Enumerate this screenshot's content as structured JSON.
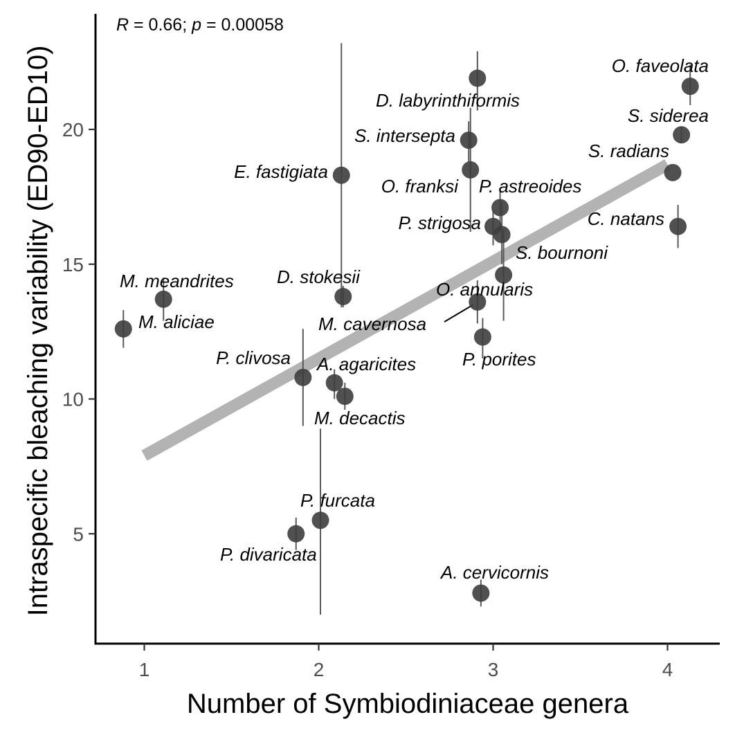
{
  "chart_data": {
    "type": "scatter",
    "xlabel": "Number of Symbiodiniaceae genera",
    "ylabel": "Intraspecific bleaching variability (ED90-ED10)",
    "xlim": [
      0.7,
      4.2
    ],
    "ylim": [
      1.2,
      24.0
    ],
    "x_ticks": [
      1,
      2,
      3,
      4
    ],
    "y_ticks": [
      5,
      10,
      15,
      20
    ],
    "grid": false,
    "annotation": {
      "r_symbol": "R",
      "r_text": " = 0.66; ",
      "p_symbol": "p",
      "p_text": " = 0.00058"
    },
    "fit_line": {
      "x": [
        1.0,
        4.0
      ],
      "y": [
        7.9,
        18.7
      ]
    },
    "points": [
      {
        "label": "O. faveolata",
        "x": 4.13,
        "y": 21.6,
        "ylo": 20.9,
        "yhi": 22.4
      },
      {
        "label": "S. siderea",
        "x": 4.08,
        "y": 19.8,
        "ylo": 19.5,
        "yhi": 20.1
      },
      {
        "label": "S. radians",
        "x": 4.03,
        "y": 18.4,
        "ylo": 18.4,
        "yhi": 18.4
      },
      {
        "label": "C. natans",
        "x": 4.06,
        "y": 16.4,
        "ylo": 15.6,
        "yhi": 17.2
      },
      {
        "label": "D. labyrinthiformis",
        "x": 2.91,
        "y": 21.9,
        "ylo": 20.7,
        "yhi": 22.9
      },
      {
        "label": "S. intersepta",
        "x": 2.86,
        "y": 19.6,
        "ylo": 18.8,
        "yhi": 20.3
      },
      {
        "label": "O. franksi",
        "x": 2.87,
        "y": 18.5,
        "ylo": 16.2,
        "yhi": 20.8
      },
      {
        "label": "P. astreoides",
        "x": 3.04,
        "y": 17.1,
        "ylo": 16.3,
        "yhi": 17.7
      },
      {
        "label": "P. strigosa",
        "x": 3.0,
        "y": 16.4,
        "ylo": 15.7,
        "yhi": 17.0
      },
      {
        "label": "S. bournoni",
        "x": 3.05,
        "y": 16.1,
        "ylo": 15.0,
        "yhi": 17.3
      },
      {
        "label": "O. annularis",
        "x": 3.06,
        "y": 14.6,
        "ylo": 12.9,
        "yhi": 16.3
      },
      {
        "label": "M. cavernosa",
        "x": 2.91,
        "y": 13.6,
        "ylo": 12.8,
        "yhi": 14.4
      },
      {
        "label": "P. porites",
        "x": 2.94,
        "y": 12.3,
        "ylo": 11.5,
        "yhi": 13.0
      },
      {
        "label": "E. fastigiata",
        "x": 2.13,
        "y": 18.3,
        "ylo": 13.4,
        "yhi": 23.2
      },
      {
        "label": "D. stokesii",
        "x": 2.14,
        "y": 13.8,
        "ylo": 13.4,
        "yhi": 14.2
      },
      {
        "label": "M. meandrites",
        "x": 1.11,
        "y": 13.7,
        "ylo": 12.9,
        "yhi": 14.5
      },
      {
        "label": "M. aliciae",
        "x": 0.88,
        "y": 12.6,
        "ylo": 11.9,
        "yhi": 13.3
      },
      {
        "label": "P. clivosa",
        "x": 1.91,
        "y": 10.8,
        "ylo": 9.0,
        "yhi": 12.6
      },
      {
        "label": "A. agaricites",
        "x": 2.09,
        "y": 10.6,
        "ylo": 10.0,
        "yhi": 11.1
      },
      {
        "label": "M. decactis",
        "x": 2.15,
        "y": 10.1,
        "ylo": 9.6,
        "yhi": 10.6
      },
      {
        "label": "P. furcata",
        "x": 2.01,
        "y": 5.5,
        "ylo": 2.0,
        "yhi": 8.9
      },
      {
        "label": "P. divaricata",
        "x": 1.87,
        "y": 5.0,
        "ylo": 4.4,
        "yhi": 5.6
      },
      {
        "label": "A. cervicornis",
        "x": 2.93,
        "y": 2.8,
        "ylo": 2.3,
        "yhi": 3.3
      }
    ]
  }
}
